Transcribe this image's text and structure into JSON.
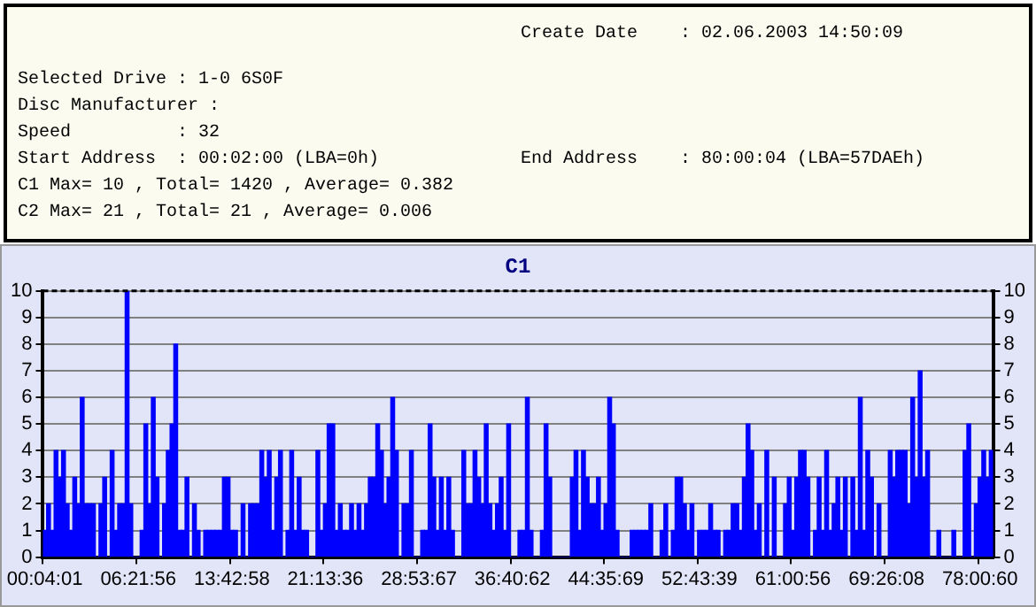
{
  "chart_data": {
    "type": "bar",
    "title": "C1",
    "annotations": [
      "Create Date    : 02.06.2003 14:50:09",
      "Selected Drive : 1-0 6S0F",
      "Disc Manufacturer :",
      "Speed          : 32",
      "Start Address  : 00:02:00 (LBA=0h)",
      "End Address    : 80:00:04 (LBA=57DAEh)",
      "C1 Max= 10 , Total= 1420 , Average= 0.382",
      "C2 Max= 21 , Total= 21 , Average= 0.006"
    ],
    "categories": [
      "00:04:01",
      null,
      null,
      null,
      null,
      null,
      null,
      null,
      null,
      null,
      null,
      null,
      null,
      null,
      null,
      null,
      null,
      null,
      null,
      null,
      null,
      null,
      null,
      null,
      null,
      "06:21:56",
      null,
      null,
      null,
      null,
      null,
      null,
      null,
      null,
      null,
      null,
      null,
      null,
      null,
      null,
      null,
      null,
      null,
      null,
      null,
      null,
      null,
      null,
      null,
      null,
      "13:42:58",
      null,
      null,
      null,
      null,
      null,
      null,
      null,
      null,
      null,
      null,
      null,
      null,
      null,
      null,
      null,
      null,
      null,
      null,
      null,
      null,
      null,
      null,
      null,
      null,
      "21:13:36",
      null,
      null,
      null,
      null,
      null,
      null,
      null,
      null,
      null,
      null,
      null,
      null,
      null,
      null,
      null,
      null,
      null,
      null,
      null,
      null,
      null,
      null,
      null,
      null,
      "28:53:67",
      null,
      null,
      null,
      null,
      null,
      null,
      null,
      null,
      null,
      null,
      null,
      null,
      null,
      null,
      null,
      null,
      null,
      null,
      null,
      null,
      null,
      null,
      null,
      null,
      "36:40:62",
      null,
      null,
      null,
      null,
      null,
      null,
      null,
      null,
      null,
      null,
      null,
      null,
      null,
      null,
      null,
      null,
      null,
      null,
      null,
      null,
      null,
      null,
      null,
      null,
      "44:35:69",
      null,
      null,
      null,
      null,
      null,
      null,
      null,
      null,
      null,
      null,
      null,
      null,
      null,
      null,
      null,
      null,
      null,
      null,
      null,
      null,
      null,
      null,
      null,
      null,
      "52:43:39",
      null,
      null,
      null,
      null,
      null,
      null,
      null,
      null,
      null,
      null,
      null,
      null,
      null,
      null,
      null,
      null,
      null,
      null,
      null,
      null,
      null,
      null,
      null,
      null,
      "61:00:56",
      null,
      null,
      null,
      null,
      null,
      null,
      null,
      null,
      null,
      null,
      null,
      null,
      null,
      null,
      null,
      null,
      null,
      null,
      null,
      null,
      null,
      null,
      null,
      null,
      "69:26:08",
      null,
      null,
      null,
      null,
      null,
      null,
      null,
      null,
      null,
      null,
      null,
      null,
      null,
      null,
      null,
      null,
      null,
      null,
      null,
      null,
      null,
      null,
      null,
      null,
      "78:00:60",
      null,
      null,
      null
    ],
    "values": [
      1,
      2,
      1,
      4,
      3,
      4,
      2,
      1,
      3,
      2,
      6,
      2,
      2,
      2,
      0,
      2,
      3,
      0,
      4,
      1,
      2,
      2,
      10,
      2,
      0,
      0,
      1,
      5,
      2,
      6,
      3,
      0,
      2,
      4,
      5,
      8,
      1,
      1,
      3,
      0,
      2,
      1,
      0,
      1,
      1,
      1,
      1,
      1,
      3,
      3,
      1,
      1,
      0,
      2,
      0,
      2,
      2,
      2,
      4,
      3,
      4,
      1,
      3,
      4,
      0,
      1,
      4,
      1,
      3,
      1,
      1,
      0,
      0,
      4,
      1,
      2,
      5,
      5,
      1,
      2,
      1,
      1,
      2,
      1,
      2,
      1,
      2,
      3,
      3,
      5,
      4,
      2,
      3,
      6,
      4,
      0,
      2,
      2,
      4,
      0,
      0,
      1,
      1,
      5,
      3,
      1,
      3,
      1,
      3,
      1,
      0,
      0,
      4,
      2,
      2,
      4,
      3,
      2,
      5,
      2,
      1,
      2,
      3,
      1,
      5,
      0,
      0,
      1,
      1,
      6,
      1,
      0,
      0,
      1,
      5,
      3,
      0,
      0,
      0,
      0,
      0,
      3,
      4,
      1,
      4,
      3,
      2,
      2,
      3,
      1,
      2,
      6,
      5,
      1,
      0,
      0,
      0,
      1,
      1,
      1,
      1,
      1,
      2,
      0,
      0,
      1,
      2,
      0,
      1,
      3,
      3,
      2,
      1,
      2,
      0,
      1,
      1,
      1,
      2,
      1,
      1,
      0,
      1,
      1,
      2,
      2,
      1,
      3,
      5,
      4,
      1,
      2,
      0,
      4,
      0,
      3,
      0,
      0,
      2,
      3,
      1,
      3,
      4,
      4,
      3,
      0,
      1,
      3,
      1,
      4,
      1,
      2,
      3,
      1,
      3,
      0,
      3,
      1,
      6,
      1,
      4,
      3,
      0,
      2,
      0,
      0,
      4,
      3,
      4,
      4,
      4,
      2,
      6,
      3,
      7,
      3,
      4,
      0,
      0,
      1,
      0,
      0,
      0,
      1,
      0,
      0,
      4,
      5,
      0,
      2,
      3,
      4,
      3,
      4
    ],
    "color": "#0000ff",
    "ylim": [
      0,
      10
    ],
    "yticks": [
      0,
      1,
      2,
      3,
      4,
      5,
      6,
      7,
      8,
      9,
      10
    ],
    "y2lim": [
      0,
      10
    ],
    "y2ticks": [
      0,
      1,
      2,
      3,
      4,
      5,
      6,
      7,
      8,
      9,
      10
    ],
    "grid": "y",
    "legend": false
  }
}
